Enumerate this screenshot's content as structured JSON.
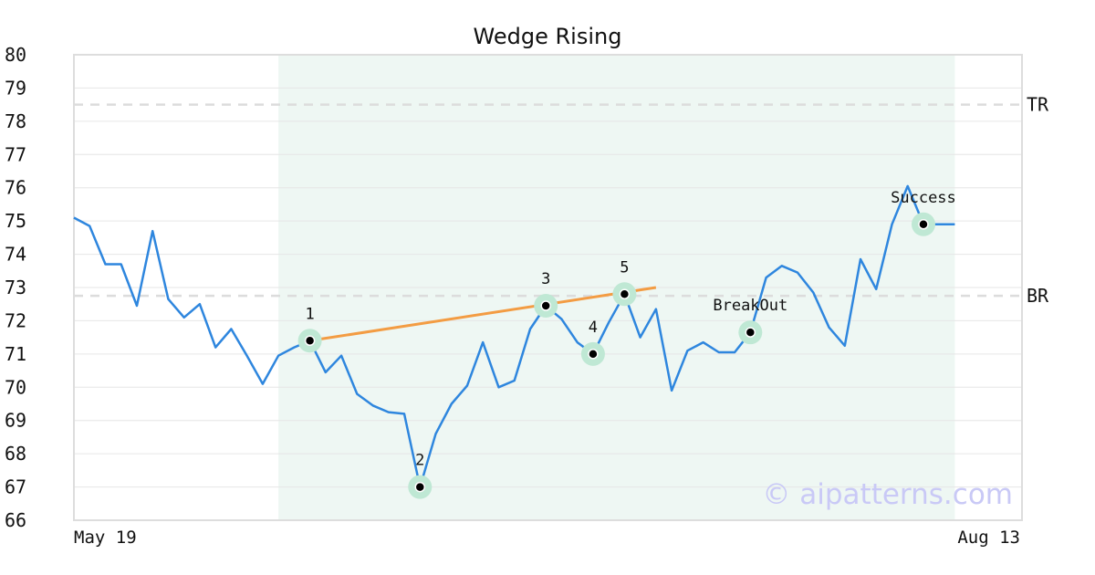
{
  "chart_data": {
    "type": "line",
    "title": "Wedge Rising",
    "xlabel": "",
    "ylabel": "",
    "ylim": [
      66,
      80
    ],
    "yticks": [
      66,
      67,
      68,
      69,
      70,
      71,
      72,
      73,
      74,
      75,
      76,
      77,
      78,
      79,
      80
    ],
    "xtick_labels": [
      "May 19",
      "Aug 13"
    ],
    "grid": "horizontal",
    "legend": "none",
    "series": [
      {
        "color": "#2e86de",
        "values": [
          75.1,
          74.85,
          73.7,
          73.7,
          72.45,
          74.7,
          72.65,
          72.1,
          72.5,
          71.2,
          71.75,
          70.95,
          70.1,
          70.95,
          71.2,
          71.4,
          70.45,
          70.95,
          69.8,
          69.45,
          69.25,
          69.2,
          67.0,
          68.6,
          69.5,
          70.05,
          71.35,
          70.0,
          70.2,
          71.75,
          72.45,
          72.05,
          71.35,
          71.0,
          71.95,
          72.8,
          71.5,
          72.35,
          69.9,
          71.1,
          71.35,
          71.05,
          71.05,
          71.65,
          73.3,
          73.65,
          73.45,
          72.85,
          71.8,
          71.25,
          73.85,
          72.95,
          74.9,
          76.05,
          74.9,
          74.9,
          74.9
        ]
      }
    ],
    "trendline": {
      "color": "#f39c43",
      "from": [
        15,
        71.4
      ],
      "to": [
        37,
        73.0
      ]
    },
    "shaded_region": {
      "from_index": 13,
      "to_index": 56,
      "color": "#eef7f3"
    },
    "horizontal_lines": [
      {
        "label": "TR",
        "value": 78.5
      },
      {
        "label": "BR",
        "value": 72.75
      }
    ],
    "points": [
      {
        "label": "1",
        "index": 15,
        "value": 71.4
      },
      {
        "label": "2",
        "index": 22,
        "value": 67.0
      },
      {
        "label": "3",
        "index": 30,
        "value": 72.45
      },
      {
        "label": "4",
        "index": 33,
        "value": 71.0
      },
      {
        "label": "5",
        "index": 35,
        "value": 72.8
      },
      {
        "label": "BreakOut",
        "index": 43,
        "value": 71.65
      },
      {
        "label": "Success",
        "index": 54,
        "value": 74.9
      }
    ],
    "watermark": "© aipatterns.com"
  }
}
